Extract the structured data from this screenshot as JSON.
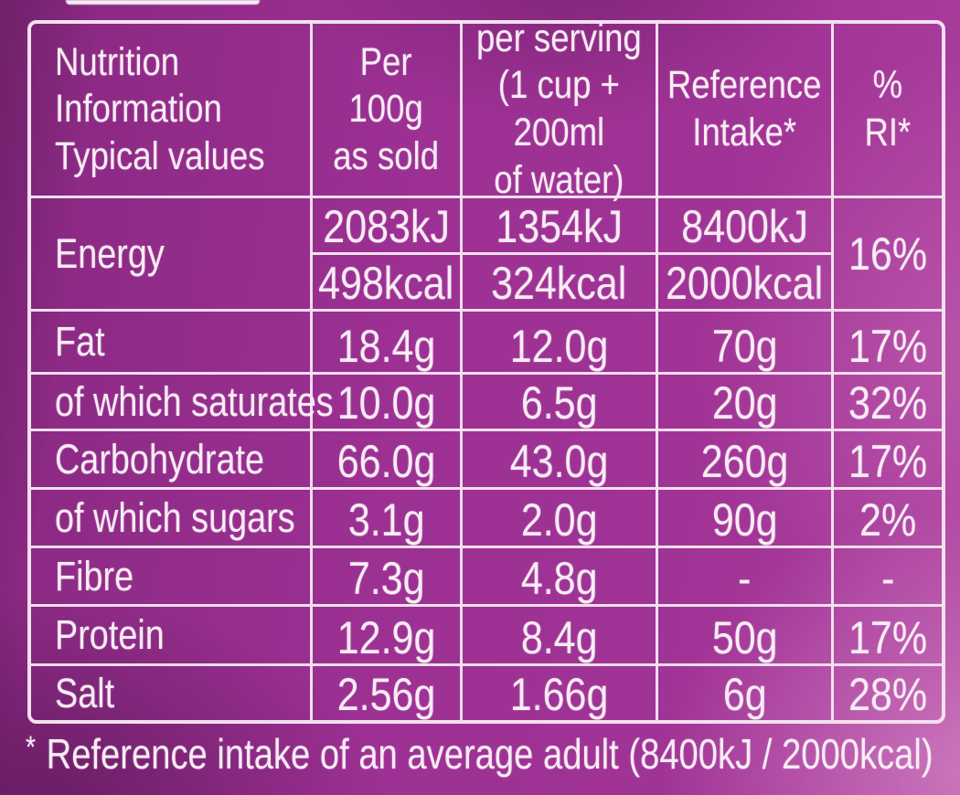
{
  "colors": {
    "background": "#9c3093",
    "line": "#f2e0ee",
    "text": "#f8ecf5"
  },
  "table": {
    "header": {
      "col1": [
        "Nutrition",
        "Information",
        "Typical values"
      ],
      "col2": [
        "Per",
        "100g",
        "as sold"
      ],
      "col3": [
        "per serving",
        "(1 cup +",
        "200ml",
        "of water)"
      ],
      "col4": [
        "Reference",
        "Intake*"
      ],
      "col5": [
        "%",
        "RI*"
      ]
    },
    "energy": {
      "label": "Energy",
      "per_100g_kj": "2083kJ",
      "per_100g_kcal": "498kcal",
      "per_serving_kj": "1354kJ",
      "per_serving_kcal": "324kcal",
      "reference_intake_kj": "8400kJ",
      "reference_intake_kcal": "2000kcal",
      "ri_percent": "16%"
    },
    "rows": [
      {
        "label": "Fat",
        "per_100g": "18.4g",
        "per_serving": "12.0g",
        "reference_intake": "70g",
        "ri_percent": "17%"
      },
      {
        "label": "of which saturates",
        "per_100g": "10.0g",
        "per_serving": "6.5g",
        "reference_intake": "20g",
        "ri_percent": "32%"
      },
      {
        "label": "Carbohydrate",
        "per_100g": "66.0g",
        "per_serving": "43.0g",
        "reference_intake": "260g",
        "ri_percent": "17%"
      },
      {
        "label": "of which sugars",
        "per_100g": "3.1g",
        "per_serving": "2.0g",
        "reference_intake": "90g",
        "ri_percent": "2%"
      },
      {
        "label": "Fibre",
        "per_100g": "7.3g",
        "per_serving": "4.8g",
        "reference_intake": "-",
        "ri_percent": "-"
      },
      {
        "label": "Protein",
        "per_100g": "12.9g",
        "per_serving": "8.4g",
        "reference_intake": "50g",
        "ri_percent": "17%"
      },
      {
        "label": "Salt",
        "per_100g": "2.56g",
        "per_serving": "1.66g",
        "reference_intake": "6g",
        "ri_percent": "28%"
      }
    ]
  },
  "footnote": {
    "marker": "*",
    "text": "Reference intake of an average adult (8400kJ / 2000kcal)"
  }
}
